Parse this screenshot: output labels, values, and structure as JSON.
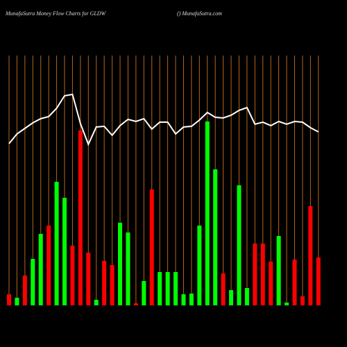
{
  "chart_data": {
    "type": "bar",
    "title": "MunafaSutra  Money Flow  Charts for GLDW",
    "subtitle": "() MunafaSutra.com",
    "ylim": [
      0,
      360
    ],
    "grid": true,
    "grid_color": "#b8651b",
    "bars": {
      "values": [
        16,
        11,
        43,
        67,
        103,
        115,
        178,
        155,
        86,
        252,
        76,
        8,
        64,
        58,
        119,
        105,
        3,
        35,
        167,
        48,
        48,
        48,
        16,
        17,
        115,
        265,
        196,
        46,
        22,
        173,
        25,
        89,
        89,
        63,
        100,
        4,
        66,
        13,
        143,
        69
      ],
      "colors": [
        "#ff0000",
        "#00ff00",
        "#ff0000",
        "#00ff00",
        "#00ff00",
        "#ff0000",
        "#00ff00",
        "#00ff00",
        "#ff0000",
        "#ff0000",
        "#ff0000",
        "#00ff00",
        "#ff0000",
        "#ff0000",
        "#00ff00",
        "#00ff00",
        "#ff0000",
        "#00ff00",
        "#ff0000",
        "#00ff00",
        "#00ff00",
        "#00ff00",
        "#00ff00",
        "#00ff00",
        "#00ff00",
        "#00ff00",
        "#00ff00",
        "#ff0000",
        "#00ff00",
        "#00ff00",
        "#00ff00",
        "#ff0000",
        "#ff0000",
        "#ff0000",
        "#00ff00",
        "#00ff00",
        "#ff0000",
        "#ff0000",
        "#ff0000",
        "#ff0000"
      ]
    },
    "line": {
      "color": "#ffffff",
      "values": [
        233,
        247,
        255,
        263,
        269,
        272,
        284,
        302,
        304,
        262,
        232,
        257,
        258,
        245,
        259,
        268,
        265,
        269,
        254,
        264,
        264,
        247,
        257,
        258,
        267,
        278,
        271,
        270,
        274,
        281,
        285,
        261,
        264,
        259,
        265,
        261,
        265,
        264,
        256,
        250
      ]
    }
  }
}
